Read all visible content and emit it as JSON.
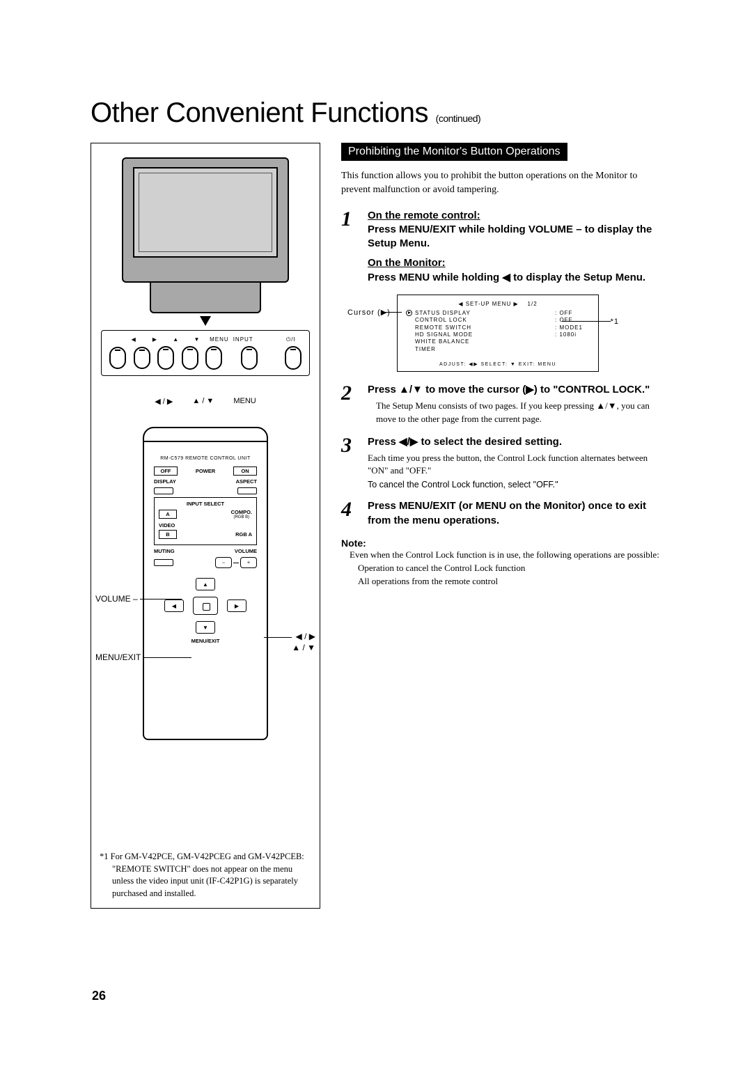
{
  "title_main": "Other Convenient Functions",
  "title_cont": "(continued)",
  "section_header": "Prohibiting the Monitor's Button Operations",
  "intro": "This function allows you to prohibit the button operations on the Monitor to prevent malfunction or avoid tampering.",
  "steps": [
    {
      "num": "1",
      "bold_a": "On the remote control:",
      "bold_b": "Press MENU/EXIT while holding VOLUME – to display the Setup Menu.",
      "bold_c": "On the Monitor:",
      "bold_d": "Press MENU while holding ◀ to display the Setup Menu."
    },
    {
      "num": "2",
      "bold": "Press ▲/▼ to move the cursor (▶) to \"CONTROL LOCK.\"",
      "sub": "The Setup Menu consists of two pages. If you keep pressing ▲/▼, you can move to the other page from the current page."
    },
    {
      "num": "3",
      "bold": "Press ◀/▶ to select the desired setting.",
      "sub": "Each time you press the button, the Control Lock function alternates between \"ON\" and \"OFF.\"",
      "note": "To cancel the Control Lock function, select \"OFF.\""
    },
    {
      "num": "4",
      "bold": "Press MENU/EXIT (or MENU on the Monitor) once to exit from the menu operations."
    }
  ],
  "menu_diagram": {
    "cursor_label": "Cursor (▶)",
    "title": "◀ SET-UP MENU ▶",
    "title_page": "1/2",
    "rows": [
      {
        "key": "STATUS DISPLAY",
        "val": ": OFF"
      },
      {
        "key": "CONTROL LOCK",
        "val": ": OFF"
      },
      {
        "key": "REMOTE SWITCH",
        "val": ": MODE1"
      },
      {
        "key": "HD SIGNAL MODE",
        "val": ": 1080i"
      },
      {
        "key": "WHITE BALANCE",
        "val": ""
      },
      {
        "key": "TIMER",
        "val": ""
      }
    ],
    "footer": "ADJUST: ◀▶  SELECT: ▼  EXIT: MENU",
    "asterisk": "*1"
  },
  "note": {
    "label": "Note:",
    "body": "Even when the Control Lock function is in use, the following operations are possible:",
    "items": [
      "Operation to cancel the Control Lock function",
      "All operations from the remote control"
    ]
  },
  "left": {
    "bp_top_labels": [
      "◀",
      "▶",
      "▲",
      "▼",
      "MENU",
      "INPUT",
      "⏻/I"
    ],
    "bp_under": [
      "◀ / ▶",
      "▲ / ▼",
      "MENU"
    ],
    "remote_title": "RM-C579 REMOTE CONTROL UNIT",
    "r_off": "OFF",
    "r_power": "POWER",
    "r_on": "ON",
    "r_display": "DISPLAY",
    "r_aspect": "ASPECT",
    "r_input_select": "INPUT SELECT",
    "r_a": "A",
    "r_compo": "COMPO.",
    "r_rgbb": "(RGB B)",
    "r_video": "VIDEO",
    "r_b": "B",
    "r_rgba": "RGB A",
    "r_muting": "MUTING",
    "r_volume": "VOLUME",
    "r_menu_exit": "MENU/EXIT",
    "callout_volume": "VOLUME –",
    "callout_menuexit": "MENU/EXIT",
    "callout_lr": "◀ / ▶",
    "callout_ud": "▲ / ▼"
  },
  "footnote": "*1 For GM-V42PCE, GM-V42PCEG and GM-V42PCEB: \"REMOTE SWITCH\" does not appear on the menu unless the video input unit (IF-C42P1G) is separately purchased and installed.",
  "page_number": "26",
  "colors": {
    "header_bg": "#000000",
    "header_text": "#ffffff",
    "body_text": "#000000",
    "page_bg": "#ffffff",
    "monitor_body": "#a8a8a8"
  }
}
